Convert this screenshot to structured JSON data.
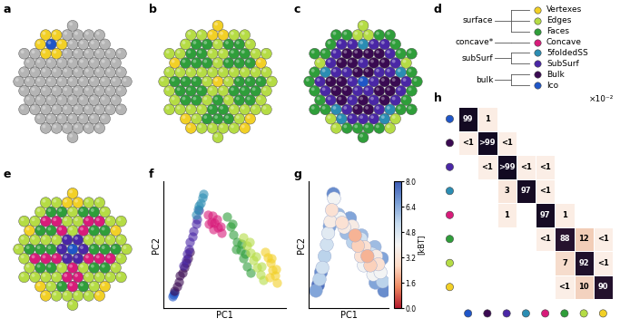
{
  "panel_labels": [
    "a",
    "b",
    "c",
    "d",
    "e",
    "f",
    "g",
    "h"
  ],
  "legend_tree": {
    "groups": [
      {
        "label": "surface",
        "items": [
          {
            "label": "Vertexes",
            "color": "#f2d026"
          },
          {
            "label": "Edges",
            "color": "#b5dc45"
          },
          {
            "label": "Faces",
            "color": "#2f9e3a"
          }
        ]
      },
      {
        "label": "concave*",
        "items": [
          {
            "label": "Concave",
            "color": "#d81b7a"
          }
        ]
      },
      {
        "label": "subSurf",
        "items": [
          {
            "label": "5foldedSS",
            "color": "#2b8db3"
          },
          {
            "label": "SubSurf",
            "color": "#4a27a6"
          }
        ]
      },
      {
        "label": "bulk",
        "items": [
          {
            "label": "Bulk",
            "color": "#3a0a52"
          },
          {
            "label": "Ico",
            "color": "#1f56c8"
          }
        ]
      }
    ]
  },
  "chart_data": [
    {
      "type": "scatter",
      "xlabel": "PC1",
      "ylabel": "PC2",
      "xlim": [
        -0.5,
        10.5
      ],
      "ylim": [
        -0.5,
        10.5
      ],
      "tick_labels": false,
      "series": [
        {
          "name": "Ico",
          "color": "#1f56c8",
          "x": [
            0.3,
            0.5,
            0.4
          ],
          "y": [
            0.5,
            0.8,
            0.65
          ]
        },
        {
          "name": "Bulk",
          "color": "#3a0a52",
          "x": [
            0.5,
            0.7,
            0.9,
            1.0,
            1.2,
            1.4,
            1.5,
            1.7,
            1.9
          ],
          "y": [
            1.0,
            1.4,
            1.8,
            2.3,
            2.6,
            3.0,
            3.4,
            3.8,
            4.4
          ]
        },
        {
          "name": "SubSurf",
          "color": "#4a27a6",
          "x": [
            1.3,
            1.5,
            1.6,
            1.8,
            1.9,
            2.1,
            2.2,
            2.4,
            2.5,
            2.7
          ],
          "y": [
            3.2,
            3.7,
            4.2,
            4.6,
            5.2,
            5.7,
            6.2,
            6.8,
            7.2,
            8.0
          ]
        },
        {
          "name": "5foldedSS",
          "color": "#2b8db3",
          "x": [
            2.4,
            2.6,
            2.7,
            2.8,
            3.0,
            3.1
          ],
          "y": [
            7.6,
            8.1,
            8.4,
            8.6,
            9.1,
            9.4
          ]
        },
        {
          "name": "Concave",
          "color": "#d81b7a",
          "x": [
            3.5,
            3.6,
            3.8,
            3.9,
            4.0,
            4.1,
            4.3,
            4.4,
            4.6,
            4.7
          ],
          "y": [
            7.6,
            6.8,
            7.0,
            7.5,
            6.3,
            6.9,
            7.2,
            6.5,
            6.6,
            6.0
          ]
        },
        {
          "name": "Faces",
          "color": "#2f9e3a",
          "x": [
            5.2,
            5.5,
            5.7,
            5.8,
            6.0,
            6.1,
            6.4,
            6.5,
            6.7,
            6.8,
            7.0,
            7.3
          ],
          "y": [
            7.4,
            6.6,
            6.8,
            5.9,
            4.6,
            5.2,
            4.5,
            5.1,
            3.8,
            4.2,
            3.1,
            2.6
          ]
        },
        {
          "name": "Edges",
          "color": "#b5dc45",
          "x": [
            6.7,
            7.0,
            7.2,
            7.3,
            7.6,
            7.8,
            7.9,
            8.2,
            8.3,
            8.5
          ],
          "y": [
            5.6,
            4.9,
            5.2,
            4.3,
            3.7,
            4.0,
            3.0,
            2.4,
            3.1,
            1.9
          ]
        },
        {
          "name": "Vertexes",
          "color": "#f2d026",
          "x": [
            8.6,
            8.9,
            9.0,
            9.1,
            9.2,
            9.3,
            9.5,
            9.6,
            9.7
          ],
          "y": [
            4.4,
            3.9,
            2.2,
            3.4,
            3.8,
            2.8,
            2.3,
            2.9,
            1.7
          ]
        }
      ]
    },
    {
      "type": "density",
      "xlabel": "PC1",
      "ylabel": "PC2",
      "xlim": [
        -0.5,
        10.5
      ],
      "ylim": [
        -0.5,
        10.5
      ],
      "tick_labels": false,
      "x": [
        0.5,
        1.0,
        1.4,
        1.7,
        2.0,
        2.2,
        2.5,
        2.7,
        3.0,
        0.8,
        2.9,
        1.2,
        2.4,
        4.1,
        3.8,
        4.4,
        3.6,
        4.7,
        5.5,
        5.9,
        6.3,
        6.7,
        7.1,
        5.2,
        5.6,
        6.7,
        7.2,
        7.6,
        8.0,
        8.4,
        6.8,
        8.7,
        8.2,
        8.8,
        9.1,
        9.4,
        9.7,
        9.9,
        9.6,
        8.6
      ],
      "y": [
        1.0,
        2.0,
        3.0,
        4.0,
        5.0,
        6.0,
        7.0,
        8.0,
        9.0,
        1.5,
        9.4,
        2.6,
        6.6,
        6.9,
        7.3,
        6.5,
        7.6,
        6.0,
        6.6,
        5.8,
        4.9,
        4.0,
        3.2,
        7.3,
        5.2,
        5.5,
        4.8,
        4.0,
        3.2,
        2.4,
        5.8,
        1.7,
        4.2,
        4.0,
        3.3,
        2.6,
        1.8,
        1.0,
        3.8,
        4.8
      ],
      "free_energy": [
        6.5,
        5.5,
        5.0,
        5.5,
        5.0,
        4.5,
        3.5,
        3.0,
        4.0,
        7.5,
        7.0,
        7.0,
        6.5,
        3.0,
        4.0,
        3.5,
        6.0,
        6.0,
        3.5,
        2.0,
        2.5,
        3.0,
        4.0,
        6.5,
        5.5,
        5.0,
        3.0,
        2.0,
        2.5,
        4.0,
        6.0,
        6.5,
        5.0,
        3.5,
        3.0,
        4.0,
        5.5,
        7.0,
        6.5,
        6.0
      ],
      "colorbar": {
        "label": "[kBT]",
        "range": [
          0,
          8
        ],
        "ticks": [
          {
            "value": 0,
            "label": "0.0"
          },
          {
            "value": 1.6,
            "label": "1.6"
          },
          {
            "value": 3.2,
            "label": "3.2"
          },
          {
            "value": 4.8,
            "label": "4.8"
          },
          {
            "value": 6.4,
            "label": "6.4"
          },
          {
            "value": 8,
            "label": "8.0"
          }
        ]
      }
    },
    {
      "type": "heatmap",
      "unit_label": "×10⁻²",
      "tick_labels": false,
      "data_labels": true,
      "categories": [
        "Ico",
        "Bulk",
        "SubSurf",
        "5foldedSS",
        "Concave",
        "Faces",
        "Edges",
        "Vertexes"
      ],
      "values": [
        [
          99,
          1,
          null,
          null,
          null,
          null,
          null,
          null
        ],
        [
          0.5,
          99.5,
          0.5,
          null,
          null,
          null,
          null,
          null
        ],
        [
          null,
          0.5,
          99.5,
          0.5,
          0.5,
          null,
          null,
          null
        ],
        [
          null,
          null,
          3,
          97,
          0.5,
          null,
          null,
          null
        ],
        [
          null,
          null,
          1,
          null,
          97,
          1,
          null,
          null
        ],
        [
          null,
          null,
          null,
          null,
          0.5,
          88,
          12,
          0.5
        ],
        [
          null,
          null,
          null,
          null,
          null,
          7,
          92,
          0.5
        ],
        [
          null,
          null,
          null,
          null,
          null,
          0.5,
          10,
          90
        ]
      ],
      "value_labels": [
        [
          "99",
          "1",
          null,
          null,
          null,
          null,
          null,
          null
        ],
        [
          "<1",
          ">99",
          "<1",
          null,
          null,
          null,
          null,
          null
        ],
        [
          null,
          "<1",
          ">99",
          "<1",
          "<1",
          null,
          null,
          null
        ],
        [
          null,
          null,
          "3",
          "97",
          "<1",
          null,
          null,
          null
        ],
        [
          null,
          null,
          "1",
          null,
          "97",
          "1",
          null,
          null
        ],
        [
          null,
          null,
          null,
          null,
          "<1",
          "88",
          "12",
          "<1"
        ],
        [
          null,
          null,
          null,
          null,
          null,
          "7",
          "92",
          "<1"
        ],
        [
          null,
          null,
          null,
          null,
          null,
          "<1",
          "10",
          "90"
        ]
      ]
    }
  ]
}
